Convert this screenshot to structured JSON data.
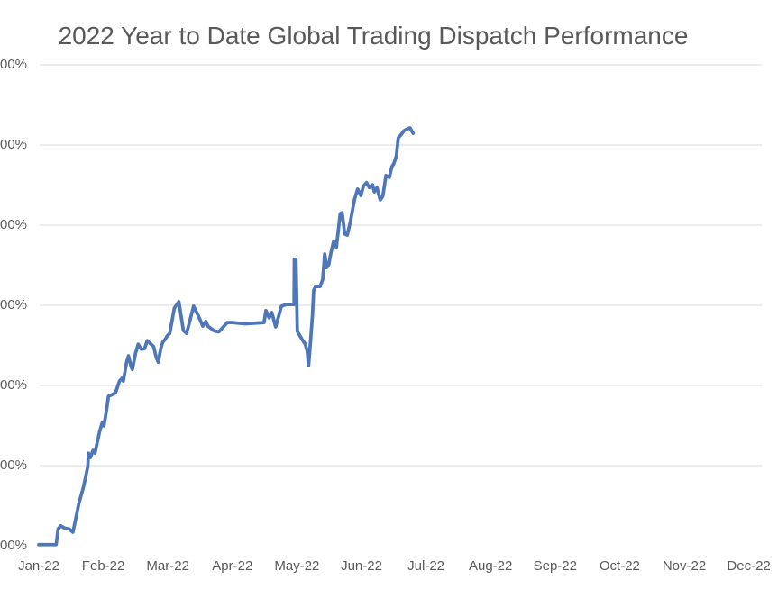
{
  "chart": {
    "title": "2022 Year to Date Global Trading Dispatch Performance"
  },
  "chart_data": {
    "type": "line",
    "title": "2022 Year to Date Global Trading Dispatch Performance",
    "x_axis": {
      "categories": [
        "Jan-22",
        "Feb-22",
        "Mar-22",
        "Apr-22",
        "May-22",
        "Jun-22",
        "Jul-22",
        "Aug-22",
        "Sep-22",
        "Oct-22",
        "Nov-22",
        "Dec-22"
      ],
      "range_months": [
        0,
        12
      ]
    },
    "y_axis": {
      "unit": "percent",
      "range_pct": [
        0,
        120
      ],
      "gridlines_at_pct": [
        20,
        40,
        60,
        80,
        100,
        120
      ],
      "ticks": [
        {
          "value": 120,
          "label": "00%"
        },
        {
          "value": 100,
          "label": "00%"
        },
        {
          "value": 80,
          "label": "00%"
        },
        {
          "value": 60,
          "label": "00%"
        },
        {
          "value": 40,
          "label": "00%"
        },
        {
          "value": 20,
          "label": "00%"
        },
        {
          "value": 0,
          "label": "00%"
        }
      ]
    },
    "colors": {
      "line": "#4e76b8",
      "gridline": "#d9d9d9",
      "text": "#595959"
    },
    "legend": "none",
    "series": [
      {
        "points": [
          [
            0.0,
            0.3
          ],
          [
            0.27,
            0.3
          ],
          [
            0.3,
            4.2
          ],
          [
            0.34,
            5.0
          ],
          [
            0.4,
            4.4
          ],
          [
            0.47,
            4.2
          ],
          [
            0.53,
            3.4
          ],
          [
            0.57,
            6.5
          ],
          [
            0.62,
            10.5
          ],
          [
            0.69,
            14.5
          ],
          [
            0.73,
            17.5
          ],
          [
            0.76,
            19.8
          ],
          [
            0.77,
            23.1
          ],
          [
            0.8,
            22.0
          ],
          [
            0.84,
            23.8
          ],
          [
            0.87,
            23.1
          ],
          [
            0.94,
            28.3
          ],
          [
            0.98,
            30.6
          ],
          [
            1.01,
            29.9
          ],
          [
            1.05,
            33.9
          ],
          [
            1.08,
            37.3
          ],
          [
            1.15,
            37.8
          ],
          [
            1.19,
            38.2
          ],
          [
            1.25,
            41.1
          ],
          [
            1.29,
            41.8
          ],
          [
            1.31,
            41.1
          ],
          [
            1.36,
            45.8
          ],
          [
            1.39,
            47.4
          ],
          [
            1.43,
            44.7
          ],
          [
            1.45,
            44.0
          ],
          [
            1.5,
            48.1
          ],
          [
            1.54,
            50.3
          ],
          [
            1.59,
            49.0
          ],
          [
            1.64,
            49.2
          ],
          [
            1.68,
            51.2
          ],
          [
            1.78,
            49.7
          ],
          [
            1.82,
            47.0
          ],
          [
            1.85,
            45.8
          ],
          [
            1.89,
            49.2
          ],
          [
            1.92,
            50.8
          ],
          [
            1.96,
            51.5
          ],
          [
            1.99,
            52.4
          ],
          [
            2.03,
            53.0
          ],
          [
            2.1,
            59.3
          ],
          [
            2.17,
            60.9
          ],
          [
            2.24,
            53.7
          ],
          [
            2.29,
            53.0
          ],
          [
            2.4,
            59.8
          ],
          [
            2.5,
            56.4
          ],
          [
            2.54,
            54.8
          ],
          [
            2.59,
            56.0
          ],
          [
            2.62,
            54.8
          ],
          [
            2.72,
            53.6
          ],
          [
            2.79,
            53.4
          ],
          [
            2.92,
            55.7
          ],
          [
            3.0,
            55.7
          ],
          [
            3.2,
            55.4
          ],
          [
            3.49,
            55.7
          ],
          [
            3.52,
            58.7
          ],
          [
            3.57,
            56.9
          ],
          [
            3.61,
            58.2
          ],
          [
            3.67,
            54.6
          ],
          [
            3.76,
            59.8
          ],
          [
            3.84,
            60.2
          ],
          [
            3.92,
            60.2
          ],
          [
            3.955,
            60.2
          ],
          [
            3.96,
            71.5
          ],
          [
            3.985,
            71.5
          ],
          [
            4.005,
            53.5
          ],
          [
            4.08,
            51.5
          ],
          [
            4.13,
            50.3
          ],
          [
            4.16,
            48.5
          ],
          [
            4.18,
            44.9
          ],
          [
            4.21,
            50.8
          ],
          [
            4.24,
            57.5
          ],
          [
            4.26,
            63.8
          ],
          [
            4.29,
            64.7
          ],
          [
            4.36,
            64.7
          ],
          [
            4.4,
            66.5
          ],
          [
            4.43,
            72.8
          ],
          [
            4.46,
            69.4
          ],
          [
            4.49,
            70.0
          ],
          [
            4.53,
            73.3
          ],
          [
            4.57,
            76.0
          ],
          [
            4.61,
            74.4
          ],
          [
            4.67,
            82.9
          ],
          [
            4.7,
            83.1
          ],
          [
            4.74,
            77.8
          ],
          [
            4.78,
            77.5
          ],
          [
            4.83,
            81.0
          ],
          [
            4.89,
            86.3
          ],
          [
            4.94,
            89.0
          ],
          [
            4.99,
            87.4
          ],
          [
            5.03,
            89.7
          ],
          [
            5.08,
            90.6
          ],
          [
            5.12,
            89.4
          ],
          [
            5.17,
            90.1
          ],
          [
            5.2,
            88.3
          ],
          [
            5.24,
            89.4
          ],
          [
            5.29,
            86.3
          ],
          [
            5.33,
            87.2
          ],
          [
            5.38,
            92.4
          ],
          [
            5.43,
            91.9
          ],
          [
            5.47,
            94.6
          ],
          [
            5.5,
            95.3
          ],
          [
            5.54,
            97.3
          ],
          [
            5.57,
            101.8
          ],
          [
            5.61,
            102.5
          ],
          [
            5.66,
            103.6
          ],
          [
            5.71,
            104.0
          ],
          [
            5.75,
            104.3
          ],
          [
            5.8,
            102.9
          ]
        ]
      }
    ]
  }
}
